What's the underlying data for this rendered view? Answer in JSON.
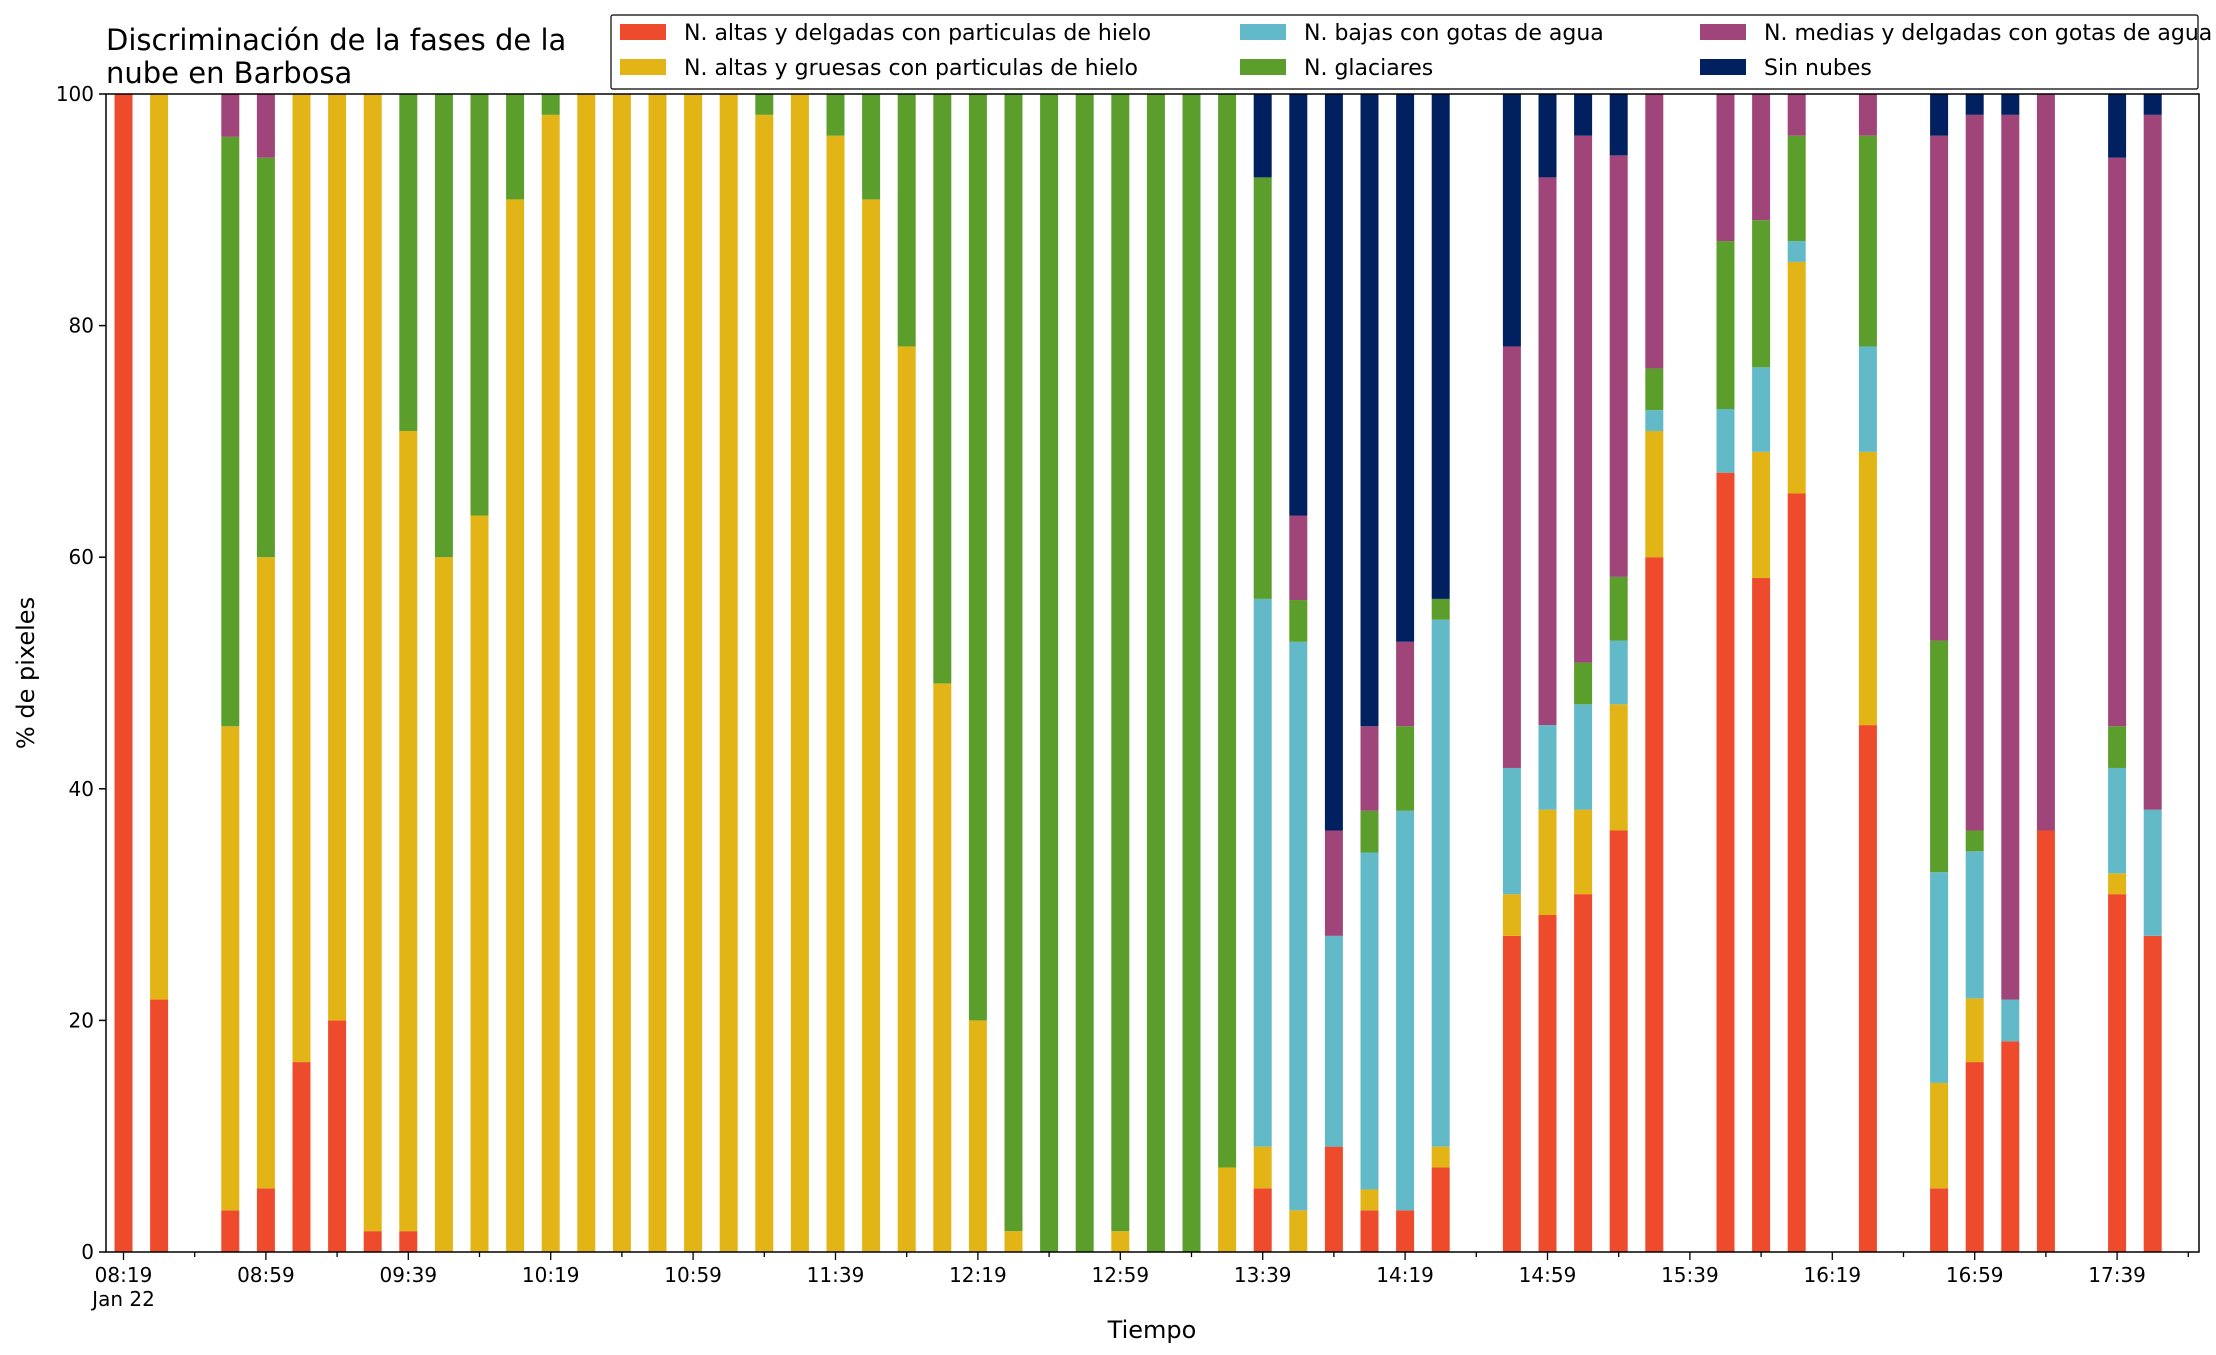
{
  "chart_data": {
    "type": "bar",
    "stacked": true,
    "title_lines": [
      "Discriminación de la fases de la",
      "nube en Barbosa"
    ],
    "xlabel": "Tiempo",
    "ylabel": "% de pixeles",
    "ylim": [
      0,
      100
    ],
    "yticks": [
      0,
      20,
      40,
      60,
      80,
      100
    ],
    "grid": false,
    "legend_position": "top-right",
    "x_tick_labels": [
      {
        "slot": 0,
        "lines": [
          "08:19",
          "Jan 22"
        ]
      },
      {
        "slot": 4,
        "lines": [
          "08:59"
        ]
      },
      {
        "slot": 8,
        "lines": [
          "09:39"
        ]
      },
      {
        "slot": 12,
        "lines": [
          "10:19"
        ]
      },
      {
        "slot": 16,
        "lines": [
          "10:59"
        ]
      },
      {
        "slot": 20,
        "lines": [
          "11:39"
        ]
      },
      {
        "slot": 24,
        "lines": [
          "12:19"
        ]
      },
      {
        "slot": 28,
        "lines": [
          "12:59"
        ]
      },
      {
        "slot": 32,
        "lines": [
          "13:39"
        ]
      },
      {
        "slot": 36,
        "lines": [
          "14:19"
        ]
      },
      {
        "slot": 40,
        "lines": [
          "14:59"
        ]
      },
      {
        "slot": 44,
        "lines": [
          "15:39"
        ]
      },
      {
        "slot": 48,
        "lines": [
          "16:19"
        ]
      },
      {
        "slot": 52,
        "lines": [
          "16:59"
        ]
      },
      {
        "slot": 56,
        "lines": [
          "17:39"
        ]
      }
    ],
    "series": [
      {
        "name": "N. altas y delgadas con particulas de hielo",
        "color": "#ee4a2c"
      },
      {
        "name": "N. altas y gruesas con particulas de hielo",
        "color": "#e3b416"
      },
      {
        "name": "N. bajas con gotas de agua",
        "color": "#62bac9"
      },
      {
        "name": "N. glaciares",
        "color": "#5b9e2b"
      },
      {
        "name": "N. medias y delgadas con gotas de agua",
        "color": "#a0457a"
      },
      {
        "name": "Sin nubes",
        "color": "#00205f"
      }
    ],
    "series_order_comment_free": true,
    "bars": [
      {
        "time": "08:19",
        "values": [
          100,
          0,
          0,
          0,
          0,
          0
        ]
      },
      {
        "time": "08:29",
        "values": [
          21.8,
          78.2,
          0,
          0,
          0,
          0
        ]
      },
      {
        "time": "08:49",
        "values": [
          3.6,
          41.8,
          0,
          50.9,
          3.7,
          0
        ]
      },
      {
        "time": "08:59",
        "values": [
          5.5,
          54.5,
          0,
          34.5,
          5.5,
          0
        ]
      },
      {
        "time": "09:09",
        "values": [
          16.4,
          83.6,
          0,
          0,
          0,
          0
        ]
      },
      {
        "time": "09:19",
        "values": [
          20,
          80,
          0,
          0,
          0,
          0
        ]
      },
      {
        "time": "09:29",
        "values": [
          1.8,
          98.2,
          0,
          0,
          0,
          0
        ]
      },
      {
        "time": "09:39",
        "values": [
          1.8,
          69.1,
          0,
          29.1,
          0,
          0
        ]
      },
      {
        "time": "09:49",
        "values": [
          0,
          60,
          0,
          40,
          0,
          0
        ]
      },
      {
        "time": "09:59",
        "values": [
          0,
          63.6,
          0,
          36.4,
          0,
          0
        ]
      },
      {
        "time": "10:09",
        "values": [
          0,
          90.9,
          0,
          9.1,
          0,
          0
        ]
      },
      {
        "time": "10:19",
        "values": [
          0,
          98.2,
          0,
          1.8,
          0,
          0
        ]
      },
      {
        "time": "10:29",
        "values": [
          0,
          100,
          0,
          0,
          0,
          0
        ]
      },
      {
        "time": "10:39",
        "values": [
          0,
          100,
          0,
          0,
          0,
          0
        ]
      },
      {
        "time": "10:49",
        "values": [
          0,
          100,
          0,
          0,
          0,
          0
        ]
      },
      {
        "time": "10:59",
        "values": [
          0,
          100,
          0,
          0,
          0,
          0
        ]
      },
      {
        "time": "11:09",
        "values": [
          0,
          100,
          0,
          0,
          0,
          0
        ]
      },
      {
        "time": "11:19",
        "values": [
          0,
          98.2,
          0,
          1.8,
          0,
          0
        ]
      },
      {
        "time": "11:29",
        "values": [
          0,
          100,
          0,
          0,
          0,
          0
        ]
      },
      {
        "time": "11:39",
        "values": [
          0,
          96.4,
          0,
          3.6,
          0,
          0
        ]
      },
      {
        "time": "11:49",
        "values": [
          0,
          90.9,
          0,
          9.1,
          0,
          0
        ]
      },
      {
        "time": "11:59",
        "values": [
          0,
          78.2,
          0,
          21.8,
          0,
          0
        ]
      },
      {
        "time": "12:09",
        "values": [
          0,
          49.1,
          0,
          50.9,
          0,
          0
        ]
      },
      {
        "time": "12:19",
        "values": [
          0,
          20,
          0,
          80,
          0,
          0
        ]
      },
      {
        "time": "12:29",
        "values": [
          0,
          1.8,
          0,
          98.2,
          0,
          0
        ]
      },
      {
        "time": "12:39",
        "values": [
          0,
          0,
          0,
          100,
          0,
          0
        ]
      },
      {
        "time": "12:49",
        "values": [
          0,
          0,
          0,
          100,
          0,
          0
        ]
      },
      {
        "time": "12:59",
        "values": [
          0,
          1.8,
          0,
          98.2,
          0,
          0
        ]
      },
      {
        "time": "13:09",
        "values": [
          0,
          0,
          0,
          100,
          0,
          0
        ]
      },
      {
        "time": "13:19",
        "values": [
          0,
          0,
          0,
          100,
          0,
          0
        ]
      },
      {
        "time": "13:29",
        "values": [
          0,
          7.3,
          0,
          92.7,
          0,
          0
        ]
      },
      {
        "time": "13:39",
        "values": [
          5.5,
          3.6,
          47.3,
          36.4,
          0,
          7.2
        ]
      },
      {
        "time": "13:49",
        "values": [
          0,
          3.6,
          49.1,
          3.6,
          7.3,
          36.4
        ]
      },
      {
        "time": "13:59",
        "values": [
          9.1,
          0,
          18.2,
          0,
          9.1,
          63.6
        ]
      },
      {
        "time": "14:09",
        "values": [
          3.6,
          1.8,
          29.1,
          3.6,
          7.3,
          54.6
        ]
      },
      {
        "time": "14:19",
        "values": [
          3.6,
          0,
          34.5,
          7.3,
          7.3,
          47.3
        ]
      },
      {
        "time": "14:29",
        "values": [
          7.3,
          1.8,
          45.5,
          1.8,
          0,
          43.6
        ]
      },
      {
        "time": "14:49",
        "values": [
          27.3,
          3.6,
          10.9,
          0,
          36.4,
          21.8
        ]
      },
      {
        "time": "14:59",
        "values": [
          29.1,
          9.1,
          7.3,
          0,
          47.3,
          7.2
        ]
      },
      {
        "time": "15:09",
        "values": [
          30.9,
          7.3,
          9.1,
          3.6,
          45.5,
          3.6
        ]
      },
      {
        "time": "15:19",
        "values": [
          36.4,
          10.9,
          5.5,
          5.5,
          36.4,
          5.3
        ]
      },
      {
        "time": "15:29",
        "values": [
          60,
          10.9,
          1.8,
          3.6,
          23.7,
          0
        ]
      },
      {
        "time": "15:49",
        "values": [
          67.3,
          0,
          5.5,
          14.5,
          12.7,
          0
        ]
      },
      {
        "time": "15:59",
        "values": [
          58.2,
          10.9,
          7.3,
          12.7,
          10.9,
          0
        ]
      },
      {
        "time": "16:09",
        "values": [
          65.5,
          20,
          1.8,
          9.1,
          3.6,
          0
        ]
      },
      {
        "time": "16:29",
        "values": [
          45.5,
          23.6,
          9.1,
          18.2,
          3.6,
          0
        ]
      },
      {
        "time": "16:49",
        "values": [
          5.5,
          9.1,
          18.2,
          20,
          43.6,
          3.6
        ]
      },
      {
        "time": "16:59",
        "values": [
          16.4,
          5.5,
          12.7,
          1.8,
          61.8,
          1.8
        ]
      },
      {
        "time": "17:09",
        "values": [
          18.2,
          0,
          3.6,
          0,
          76.4,
          1.8
        ]
      },
      {
        "time": "17:19",
        "values": [
          36.4,
          0,
          0,
          0,
          63.6,
          0
        ]
      },
      {
        "time": "17:39",
        "values": [
          30.9,
          1.8,
          9.1,
          3.6,
          49.1,
          5.5
        ]
      },
      {
        "time": "17:49",
        "values": [
          27.3,
          0,
          10.9,
          0,
          60,
          1.8
        ]
      }
    ]
  }
}
